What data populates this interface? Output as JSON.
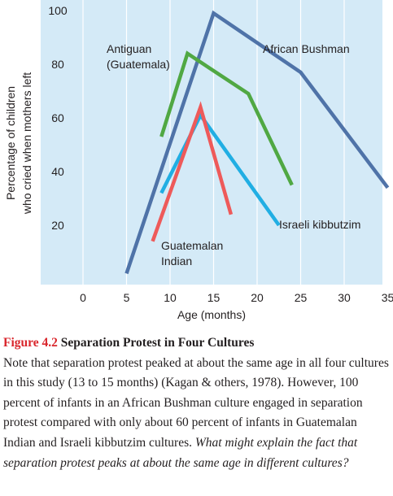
{
  "chart_data": {
    "type": "line",
    "xlabel": "Age (months)",
    "ylabel_lines": [
      "Percentage of children",
      "who cried when mothers left"
    ],
    "xlim": [
      -5,
      35
    ],
    "ylim": [
      0,
      105
    ],
    "x_ticks": [
      0,
      5,
      10,
      15,
      20,
      25,
      30,
      35
    ],
    "y_ticks": [
      20,
      40,
      60,
      80,
      100
    ],
    "grid": "vertical",
    "series": [
      {
        "name": "African Bushman",
        "label_lines": [
          "African Bushman"
        ],
        "color": "#4f73a8",
        "points": [
          [
            5,
            2
          ],
          [
            15,
            99
          ],
          [
            25,
            77
          ],
          [
            35,
            34
          ]
        ]
      },
      {
        "name": "Antiguan (Guatemala)",
        "label_lines": [
          "Antiguan",
          "(Guatemala)"
        ],
        "color": "#50a843",
        "points": [
          [
            9,
            53
          ],
          [
            12,
            84
          ],
          [
            19,
            69
          ],
          [
            24,
            35
          ]
        ]
      },
      {
        "name": "Israeli kibbutzim",
        "label_lines": [
          "Israeli kibbutzim"
        ],
        "color": "#21aee3",
        "points": [
          [
            9,
            32
          ],
          [
            13.5,
            61
          ],
          [
            22.5,
            20
          ]
        ]
      },
      {
        "name": "Guatemalan Indian",
        "label_lines": [
          "Guatemalan",
          "Indian"
        ],
        "color": "#ee5a5a",
        "points": [
          [
            8,
            14
          ],
          [
            13.5,
            64
          ],
          [
            17,
            24
          ]
        ]
      }
    ]
  },
  "caption": {
    "figure_number": "Figure 4.2",
    "figure_title": "Separation Protest in Four Cultures",
    "body": "Note that separation protest peaked at about the same age in all four cultures in this study (13 to 15 months) (Kagan & others, 1978). However, 100 percent of infants in an African Bushman culture engaged in separation protest compared with only about 60 percent of infants in Guatemalan Indian and Israeli kibbutzim cultures.",
    "question": "What might explain the fact that separation protest peaks at about the same age in different cultures?"
  }
}
